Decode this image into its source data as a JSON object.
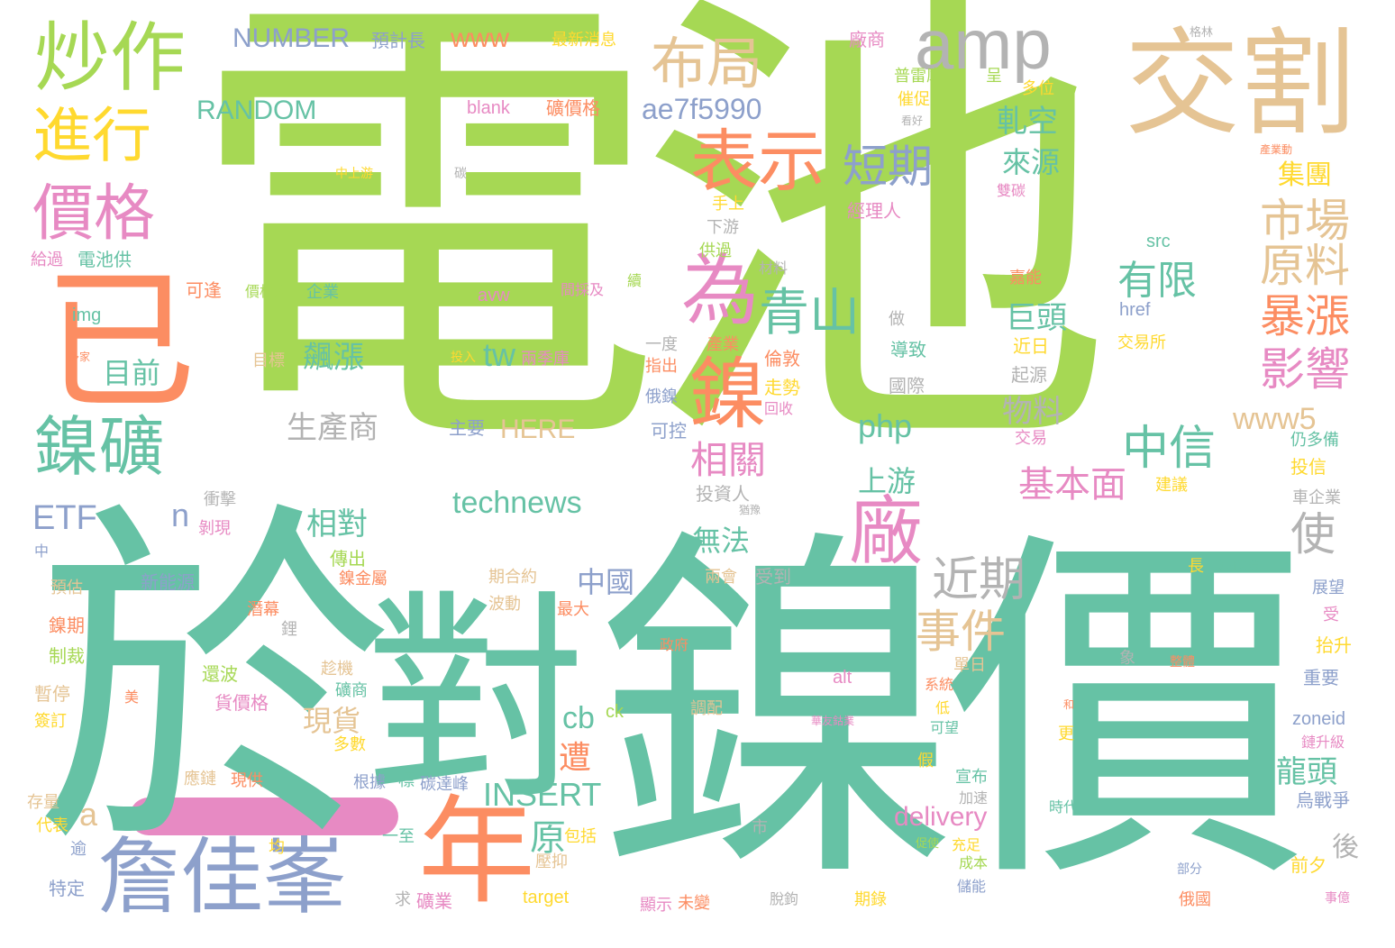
{
  "colors": {
    "green": "#a6d854",
    "teal": "#66c2a5",
    "orange": "#fc8d62",
    "blue": "#8da0cb",
    "pink": "#e78ac3",
    "yellow": "#ffd92f",
    "tan": "#e5c494",
    "gray": "#b3b3b3"
  },
  "words": [
    {
      "text": "電池",
      "color": "green"
    },
    {
      "text": "於",
      "color": "teal"
    },
    {
      "text": "對",
      "color": "teal"
    },
    {
      "text": "鎳價",
      "color": "teal"
    },
    {
      "text": "交割",
      "color": "tan"
    },
    {
      "text": "炒作",
      "color": "green"
    },
    {
      "text": "amp",
      "color": "gray"
    },
    {
      "text": "布局",
      "color": "tan"
    },
    {
      "text": "進行",
      "color": "yellow"
    },
    {
      "text": "表示",
      "color": "orange"
    },
    {
      "text": "短期",
      "color": "blue"
    },
    {
      "text": "價格",
      "color": "pink"
    },
    {
      "text": "已",
      "color": "orange"
    },
    {
      "text": "為",
      "color": "pink"
    },
    {
      "text": "青山",
      "color": "teal"
    },
    {
      "text": "鎳",
      "color": "orange"
    },
    {
      "text": "鎳礦",
      "color": "teal"
    },
    {
      "text": "廠",
      "color": "pink"
    },
    {
      "text": "年",
      "color": "orange"
    },
    {
      "text": "詹佳峯",
      "color": "blue"
    },
    {
      "text": "中信",
      "color": "teal"
    },
    {
      "text": "市場",
      "color": "tan"
    },
    {
      "text": "原料",
      "color": "tan"
    },
    {
      "text": "暴漲",
      "color": "orange"
    },
    {
      "text": "影響",
      "color": "pink"
    },
    {
      "text": "有限",
      "color": "teal"
    },
    {
      "text": "近期",
      "color": "gray"
    },
    {
      "text": "事件",
      "color": "tan"
    },
    {
      "text": "使",
      "color": "gray"
    },
    {
      "text": "www5",
      "color": "tan"
    },
    {
      "text": "基本面",
      "color": "pink"
    },
    {
      "text": "相關",
      "color": "pink"
    },
    {
      "text": "ae7f5990",
      "color": "blue"
    },
    {
      "text": "technews",
      "color": "teal"
    },
    {
      "text": "INSERT",
      "color": "teal"
    },
    {
      "text": "delivery",
      "color": "pink"
    },
    {
      "text": "NUMBER",
      "color": "blue"
    },
    {
      "text": "RANDOM",
      "color": "teal"
    },
    {
      "text": "www",
      "color": "orange"
    },
    {
      "text": "ETF",
      "color": "blue"
    },
    {
      "text": "HERE",
      "color": "tan"
    },
    {
      "text": "php",
      "color": "teal"
    },
    {
      "text": "tw",
      "color": "teal"
    },
    {
      "text": "cb",
      "color": "teal"
    },
    {
      "text": "生產商",
      "color": "gray"
    },
    {
      "text": "飆漲",
      "color": "teal"
    },
    {
      "text": "目前",
      "color": "teal"
    },
    {
      "text": "相對",
      "color": "teal"
    },
    {
      "text": "軋空",
      "color": "teal"
    },
    {
      "text": "來源",
      "color": "teal"
    },
    {
      "text": "集團",
      "color": "yellow"
    },
    {
      "text": "巨頭",
      "color": "teal"
    },
    {
      "text": "物料",
      "color": "gray"
    },
    {
      "text": "上游",
      "color": "teal"
    },
    {
      "text": "無法",
      "color": "teal"
    },
    {
      "text": "中國",
      "color": "blue"
    },
    {
      "text": "現貨",
      "color": "tan"
    },
    {
      "text": "遭",
      "color": "orange"
    },
    {
      "text": "龍頭",
      "color": "teal"
    },
    {
      "text": "原",
      "color": "teal"
    },
    {
      "text": "後",
      "color": "gray"
    },
    {
      "text": "a",
      "color": "tan"
    },
    {
      "text": "n",
      "color": "blue"
    },
    {
      "text": "img",
      "color": "teal"
    },
    {
      "text": "src",
      "color": "teal"
    },
    {
      "text": "href",
      "color": "blue"
    },
    {
      "text": "blank",
      "color": "pink"
    },
    {
      "text": "avw",
      "color": "pink"
    },
    {
      "text": "alt",
      "color": "pink"
    },
    {
      "text": "border",
      "color": "teal"
    },
    {
      "text": "zoneid",
      "color": "blue"
    },
    {
      "text": "target",
      "color": "yellow"
    },
    {
      "text": "ck",
      "color": "green"
    },
    {
      "text": "預計長",
      "color": "blue"
    },
    {
      "text": "最新消息",
      "color": "yellow"
    },
    {
      "text": "廠商",
      "color": "pink"
    },
    {
      "text": "格林",
      "color": "gray"
    },
    {
      "text": "普雷庫",
      "color": "green"
    },
    {
      "text": "呈",
      "color": "green"
    },
    {
      "text": "多位",
      "color": "yellow"
    },
    {
      "text": "催促",
      "color": "yellow"
    },
    {
      "text": "看好",
      "color": "gray"
    },
    {
      "text": "礦價格",
      "color": "orange"
    },
    {
      "text": "產業動",
      "color": "orange"
    },
    {
      "text": "中上游",
      "color": "yellow"
    },
    {
      "text": "碳",
      "color": "gray"
    },
    {
      "text": "雙碳",
      "color": "pink"
    },
    {
      "text": "手上",
      "color": "yellow"
    },
    {
      "text": "經理人",
      "color": "pink"
    },
    {
      "text": "下游",
      "color": "gray"
    },
    {
      "text": "給過",
      "color": "pink"
    },
    {
      "text": "電池供",
      "color": "teal"
    },
    {
      "text": "供過",
      "color": "green"
    },
    {
      "text": "材料",
      "color": "gray"
    },
    {
      "text": "續",
      "color": "green"
    },
    {
      "text": "嘉能",
      "color": "orange"
    },
    {
      "text": "可逢",
      "color": "orange"
    },
    {
      "text": "價格跌",
      "color": "green"
    },
    {
      "text": "企業",
      "color": "teal"
    },
    {
      "text": "間採及",
      "color": "pink"
    },
    {
      "text": "做",
      "color": "gray"
    },
    {
      "text": "導致",
      "color": "teal"
    },
    {
      "text": "交易所",
      "color": "yellow"
    },
    {
      "text": "一度",
      "color": "gray"
    },
    {
      "text": "產業",
      "color": "orange"
    },
    {
      "text": "近日",
      "color": "yellow"
    },
    {
      "text": "多家",
      "color": "orange"
    },
    {
      "text": "目標",
      "color": "tan"
    },
    {
      "text": "投入",
      "color": "yellow"
    },
    {
      "text": "兩季庫",
      "color": "pink"
    },
    {
      "text": "指出",
      "color": "orange"
    },
    {
      "text": "倫敦",
      "color": "orange"
    },
    {
      "text": "起源",
      "color": "gray"
    },
    {
      "text": "國際",
      "color": "gray"
    },
    {
      "text": "走勢",
      "color": "yellow"
    },
    {
      "text": "俄鎳",
      "color": "blue"
    },
    {
      "text": "回收",
      "color": "pink"
    },
    {
      "text": "交易",
      "color": "pink"
    },
    {
      "text": "主要",
      "color": "blue"
    },
    {
      "text": "可控",
      "color": "blue"
    },
    {
      "text": "仍多備",
      "color": "teal"
    },
    {
      "text": "投信",
      "color": "yellow"
    },
    {
      "text": "建議",
      "color": "yellow"
    },
    {
      "text": "衝擊",
      "color": "gray"
    },
    {
      "text": "投資人",
      "color": "gray"
    },
    {
      "text": "猶豫",
      "color": "gray"
    },
    {
      "text": "車企業",
      "color": "gray"
    },
    {
      "text": "剝現",
      "color": "pink"
    },
    {
      "text": "中",
      "color": "blue"
    },
    {
      "text": "傳出",
      "color": "green"
    },
    {
      "text": "鎳金屬",
      "color": "orange"
    },
    {
      "text": "期合約",
      "color": "tan"
    },
    {
      "text": "受到",
      "color": "gray"
    },
    {
      "text": "兩會",
      "color": "tan"
    },
    {
      "text": "長",
      "color": "yellow"
    },
    {
      "text": "新能源",
      "color": "blue"
    },
    {
      "text": "預估",
      "color": "tan"
    },
    {
      "text": "鎳期",
      "color": "orange"
    },
    {
      "text": "制裁",
      "color": "green"
    },
    {
      "text": "暫停",
      "color": "tan"
    },
    {
      "text": "簽訂",
      "color": "yellow"
    },
    {
      "text": "存量",
      "color": "tan"
    },
    {
      "text": "代表",
      "color": "yellow"
    },
    {
      "text": "逾",
      "color": "blue"
    },
    {
      "text": "特定",
      "color": "blue"
    },
    {
      "text": "展望",
      "color": "blue"
    },
    {
      "text": "受",
      "color": "pink"
    },
    {
      "text": "抬升",
      "color": "yellow"
    },
    {
      "text": "重要",
      "color": "blue"
    },
    {
      "text": "鏈升級",
      "color": "pink"
    },
    {
      "text": "烏戰爭",
      "color": "blue"
    },
    {
      "text": "前夕",
      "color": "yellow"
    },
    {
      "text": "事億",
      "color": "pink"
    },
    {
      "text": "時代",
      "color": "teal"
    },
    {
      "text": "部分",
      "color": "blue"
    },
    {
      "text": "象",
      "color": "gray"
    },
    {
      "text": "整體",
      "color": "orange"
    },
    {
      "text": "單日",
      "color": "tan"
    },
    {
      "text": "系統",
      "color": "orange"
    },
    {
      "text": "低",
      "color": "yellow"
    },
    {
      "text": "可望",
      "color": "teal"
    },
    {
      "text": "更",
      "color": "yellow"
    },
    {
      "text": "假",
      "color": "yellow"
    },
    {
      "text": "宣布",
      "color": "teal"
    },
    {
      "text": "加速",
      "color": "gray"
    },
    {
      "text": "充足",
      "color": "yellow"
    },
    {
      "text": "成本",
      "color": "green"
    },
    {
      "text": "儲能",
      "color": "blue"
    },
    {
      "text": "俄國",
      "color": "orange"
    },
    {
      "text": "促使",
      "color": "green"
    },
    {
      "text": "期錄",
      "color": "yellow"
    },
    {
      "text": "脫鉤",
      "color": "gray"
    },
    {
      "text": "市",
      "color": "gray"
    },
    {
      "text": "華友鈷業",
      "color": "pink"
    },
    {
      "text": "和",
      "color": "orange"
    },
    {
      "text": "政府",
      "color": "orange"
    },
    {
      "text": "調配",
      "color": "tan"
    },
    {
      "text": "波動",
      "color": "tan"
    },
    {
      "text": "最大",
      "color": "orange"
    },
    {
      "text": "鋰",
      "color": "gray"
    },
    {
      "text": "潛幕",
      "color": "orange"
    },
    {
      "text": "還波",
      "color": "green"
    },
    {
      "text": "貨價格",
      "color": "pink"
    },
    {
      "text": "美",
      "color": "orange"
    },
    {
      "text": "趁機",
      "color": "tan"
    },
    {
      "text": "礦商",
      "color": "teal"
    },
    {
      "text": "多數",
      "color": "yellow"
    },
    {
      "text": "應鏈",
      "color": "tan"
    },
    {
      "text": "現供",
      "color": "orange"
    },
    {
      "text": "根據",
      "color": "blue"
    },
    {
      "text": "標",
      "color": "teal"
    },
    {
      "text": "碳達峰",
      "color": "blue"
    },
    {
      "text": "均",
      "color": "yellow"
    },
    {
      "text": "一至",
      "color": "teal"
    },
    {
      "text": "包括",
      "color": "yellow"
    },
    {
      "text": "壓抑",
      "color": "tan"
    },
    {
      "text": "求",
      "color": "gray"
    },
    {
      "text": "礦業",
      "color": "pink"
    },
    {
      "text": "顯示",
      "color": "pink"
    },
    {
      "text": "未變",
      "color": "orange"
    }
  ]
}
